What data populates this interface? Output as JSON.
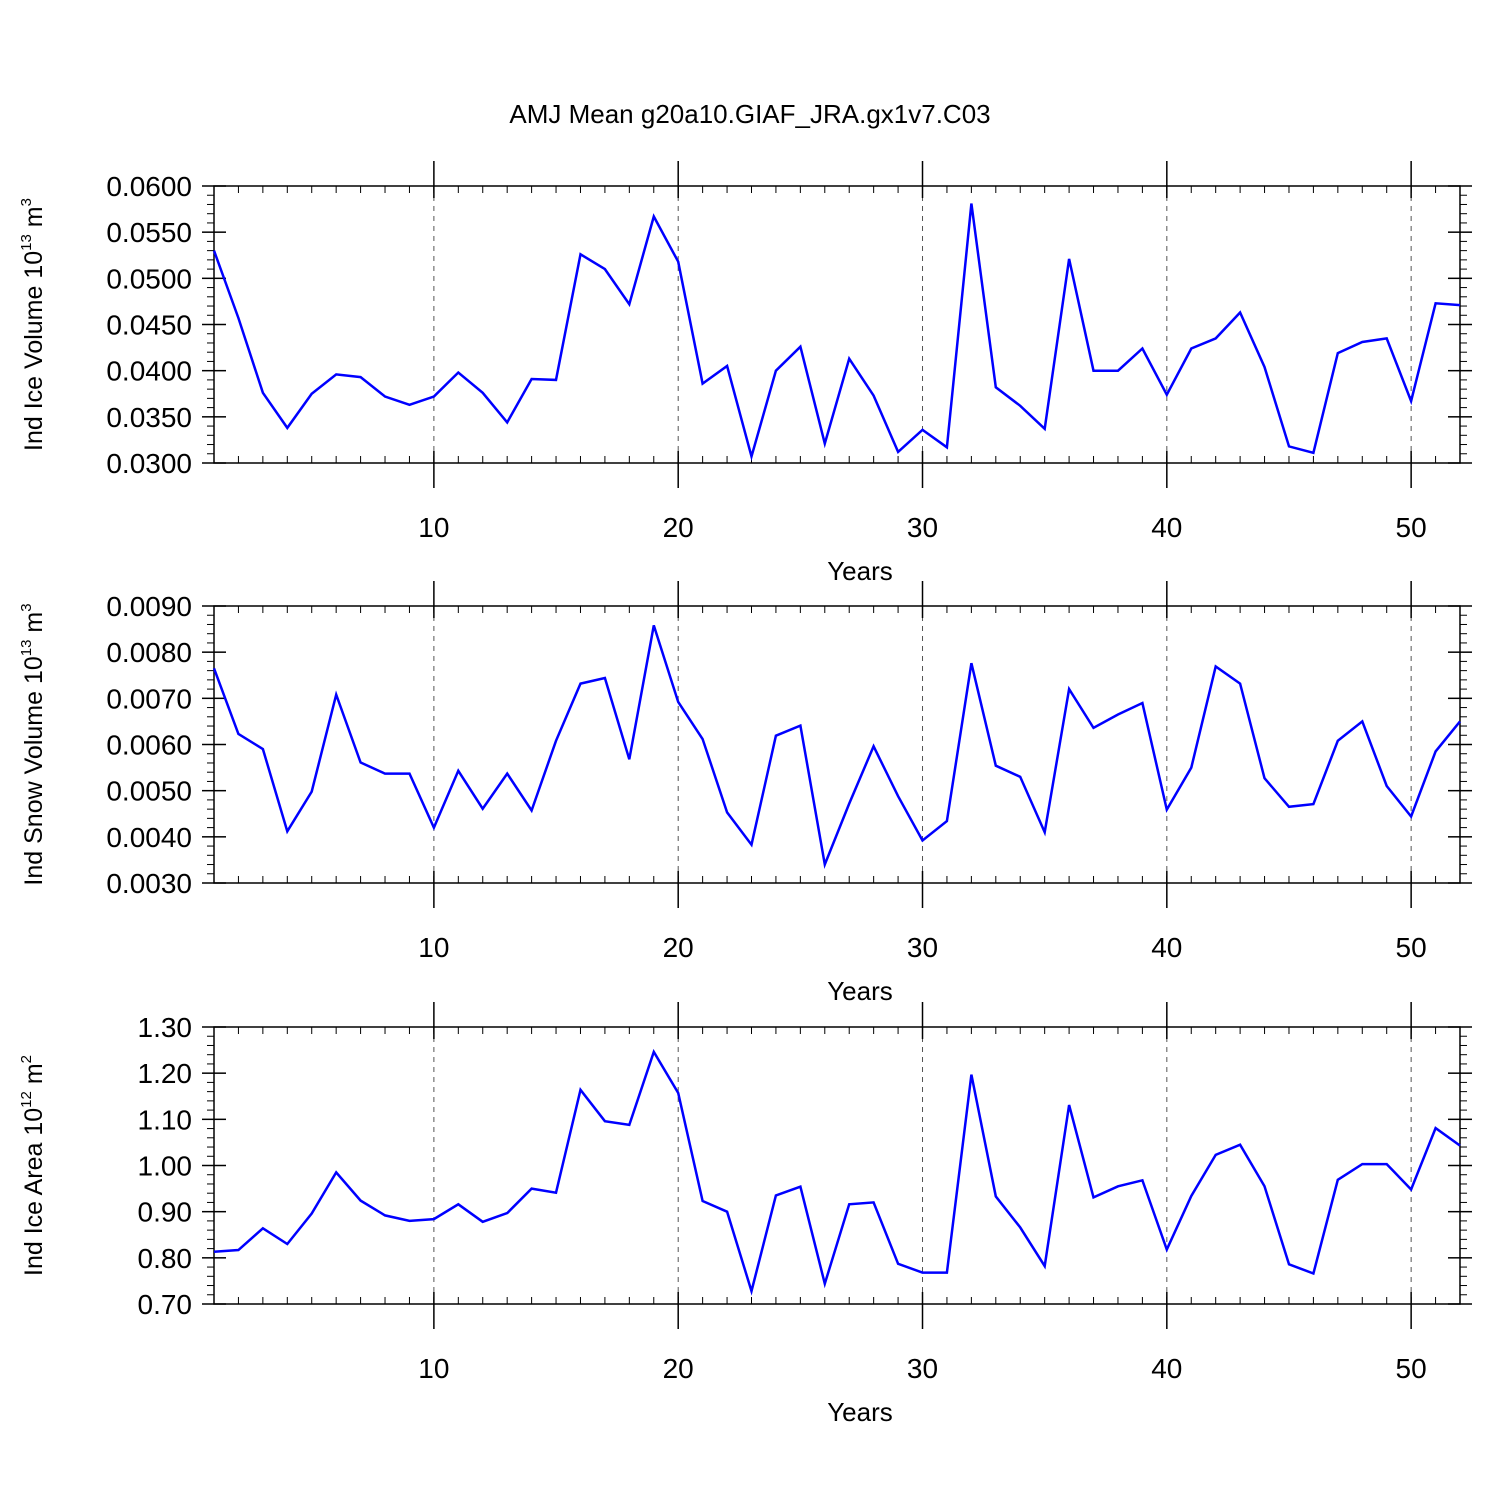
{
  "title": "AMJ Mean g20a10.GIAF_JRA.gx1v7.C03",
  "line_color": "#0000ff",
  "chart_data": [
    {
      "type": "line",
      "xlabel": "Years",
      "ylabel_prefix": "Ind Ice Volume 10",
      "ylabel_exp": "13",
      "ylabel_unit": " m",
      "ylabel_unit_exp": "3",
      "xlim": [
        1,
        52
      ],
      "ylim": [
        0.03,
        0.06
      ],
      "xticks": [
        10,
        20,
        30,
        40,
        50
      ],
      "yticks": [
        "0.0300",
        "0.0350",
        "0.0400",
        "0.0450",
        "0.0500",
        "0.0550",
        "0.0600"
      ],
      "grid": "x-major-dashed",
      "x": [
        1,
        2,
        3,
        4,
        5,
        6,
        7,
        8,
        9,
        10,
        11,
        12,
        13,
        14,
        15,
        16,
        17,
        18,
        19,
        20,
        21,
        22,
        23,
        24,
        25,
        26,
        27,
        28,
        29,
        30,
        31,
        32,
        33,
        34,
        35,
        36,
        37,
        38,
        39,
        40,
        41,
        42,
        43,
        44,
        45,
        46,
        47,
        48,
        49,
        50,
        51,
        52
      ],
      "values": [
        0.053,
        0.0457,
        0.0376,
        0.0338,
        0.0375,
        0.0396,
        0.0393,
        0.0372,
        0.0363,
        0.0372,
        0.0398,
        0.0376,
        0.0344,
        0.0391,
        0.039,
        0.0526,
        0.051,
        0.0472,
        0.0567,
        0.0518,
        0.0386,
        0.0405,
        0.0307,
        0.04,
        0.0426,
        0.0321,
        0.0413,
        0.0373,
        0.0312,
        0.0336,
        0.0317,
        0.0581,
        0.0382,
        0.0362,
        0.0337,
        0.0521,
        0.04,
        0.04,
        0.0424,
        0.0374,
        0.0424,
        0.0435,
        0.0463,
        0.0404,
        0.0318,
        0.0311,
        0.0419,
        0.0431,
        0.0435,
        0.0367,
        0.0473,
        0.0471
      ]
    },
    {
      "type": "line",
      "xlabel": "Years",
      "ylabel_prefix": "Ind Snow Volume 10",
      "ylabel_exp": "13",
      "ylabel_unit": " m",
      "ylabel_unit_exp": "3",
      "xlim": [
        1,
        52
      ],
      "ylim": [
        0.003,
        0.009
      ],
      "xticks": [
        10,
        20,
        30,
        40,
        50
      ],
      "yticks": [
        "0.0030",
        "0.0040",
        "0.0050",
        "0.0060",
        "0.0070",
        "0.0080",
        "0.0090"
      ],
      "grid": "x-major-dashed",
      "x": [
        1,
        2,
        3,
        4,
        5,
        6,
        7,
        8,
        9,
        10,
        11,
        12,
        13,
        14,
        15,
        16,
        17,
        18,
        19,
        20,
        21,
        22,
        23,
        24,
        25,
        26,
        27,
        28,
        29,
        30,
        31,
        32,
        33,
        34,
        35,
        36,
        37,
        38,
        39,
        40,
        41,
        42,
        43,
        44,
        45,
        46,
        47,
        48,
        49,
        50,
        51,
        52
      ],
      "values": [
        0.00765,
        0.00623,
        0.0059,
        0.00412,
        0.00498,
        0.00708,
        0.00561,
        0.00537,
        0.00537,
        0.0042,
        0.00543,
        0.00461,
        0.00537,
        0.00457,
        0.00608,
        0.00732,
        0.00744,
        0.00568,
        0.00858,
        0.00692,
        0.00612,
        0.00453,
        0.00383,
        0.00619,
        0.00641,
        0.0034,
        0.00472,
        0.00596,
        0.00488,
        0.00392,
        0.00434,
        0.00776,
        0.00554,
        0.0053,
        0.0041,
        0.0072,
        0.00636,
        0.00665,
        0.0069,
        0.00459,
        0.0055,
        0.00769,
        0.00732,
        0.00527,
        0.00465,
        0.00471,
        0.00608,
        0.0065,
        0.0051,
        0.00444,
        0.00585,
        0.0065
      ]
    },
    {
      "type": "line",
      "xlabel": "Years",
      "ylabel_prefix": "Ind Ice Area 10",
      "ylabel_exp": "12",
      "ylabel_unit": " m",
      "ylabel_unit_exp": "2",
      "xlim": [
        1,
        52
      ],
      "ylim": [
        0.7,
        1.3
      ],
      "xticks": [
        10,
        20,
        30,
        40,
        50
      ],
      "yticks": [
        "0.70",
        "0.80",
        "0.90",
        "1.00",
        "1.10",
        "1.20",
        "1.30"
      ],
      "grid": "x-major-dashed",
      "x": [
        1,
        2,
        3,
        4,
        5,
        6,
        7,
        8,
        9,
        10,
        11,
        12,
        13,
        14,
        15,
        16,
        17,
        18,
        19,
        20,
        21,
        22,
        23,
        24,
        25,
        26,
        27,
        28,
        29,
        30,
        31,
        32,
        33,
        34,
        35,
        36,
        37,
        38,
        39,
        40,
        41,
        42,
        43,
        44,
        45,
        46,
        47,
        48,
        49,
        50,
        51,
        52
      ],
      "values": [
        0.813,
        0.817,
        0.864,
        0.83,
        0.896,
        0.985,
        0.924,
        0.892,
        0.88,
        0.884,
        0.916,
        0.878,
        0.897,
        0.95,
        0.941,
        1.164,
        1.096,
        1.088,
        1.246,
        1.157,
        0.923,
        0.9,
        0.728,
        0.935,
        0.954,
        0.744,
        0.916,
        0.92,
        0.787,
        0.768,
        0.768,
        1.197,
        0.933,
        0.866,
        0.782,
        1.131,
        0.931,
        0.955,
        0.968,
        0.818,
        0.934,
        1.023,
        1.045,
        0.955,
        0.786,
        0.766,
        0.969,
        1.003,
        1.003,
        0.948,
        1.081,
        1.043
      ]
    }
  ]
}
